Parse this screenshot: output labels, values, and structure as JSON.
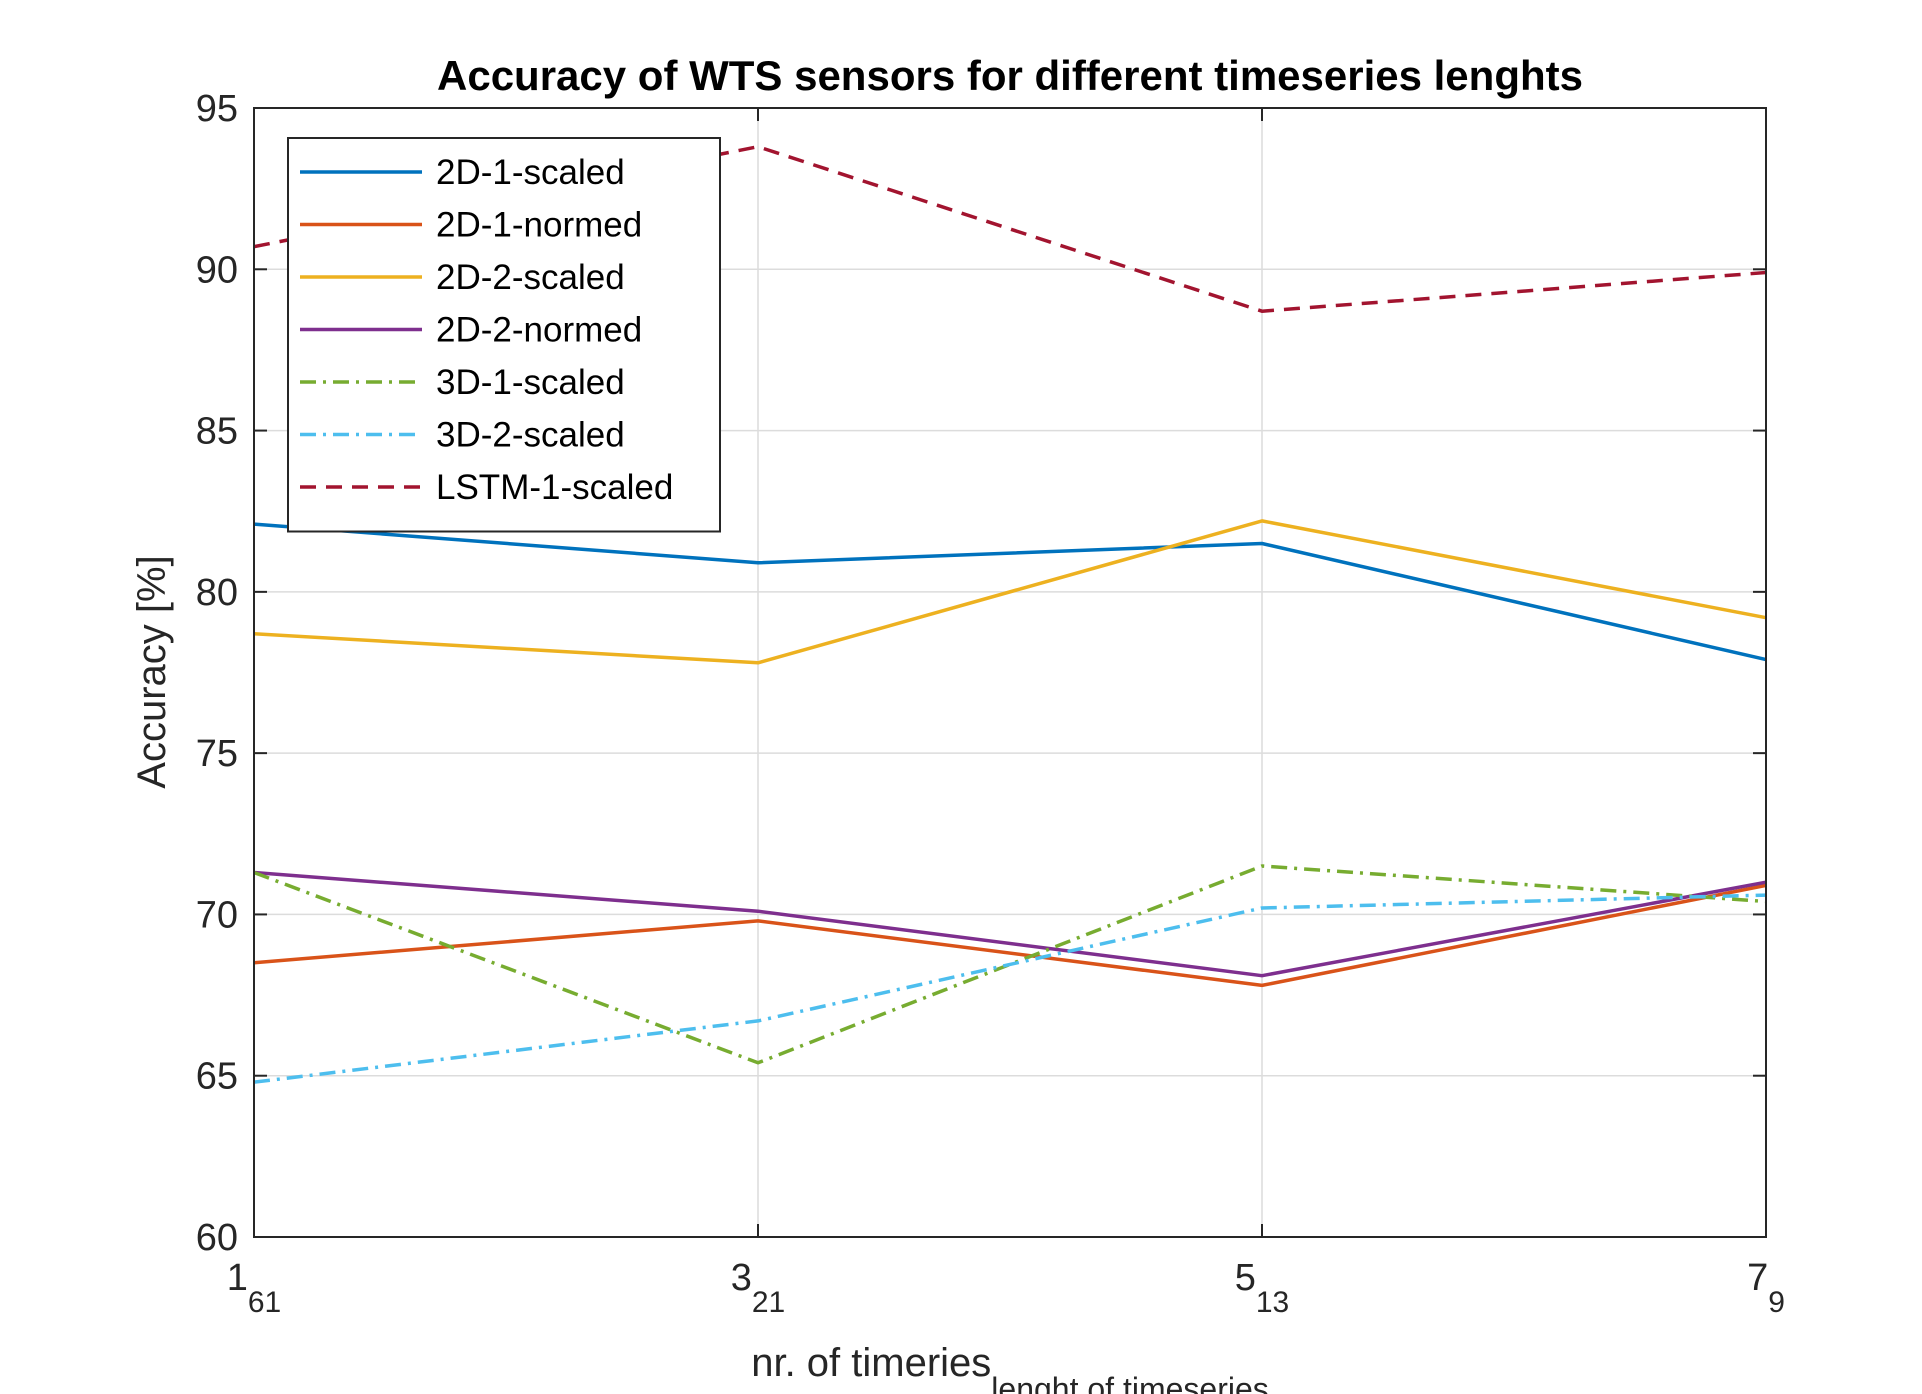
{
  "chart_data": {
    "type": "line",
    "title": "Accuracy of WTS sensors for different timeseries lenghts",
    "xlabel": "nr. of timeries",
    "xlabel_subscript": "lenght of timeseries",
    "ylabel": "Accuracy [%]",
    "x": [
      1,
      3,
      5,
      7
    ],
    "x_tick_labels": [
      {
        "main": "1",
        "sub": "61"
      },
      {
        "main": "3",
        "sub": "21"
      },
      {
        "main": "5",
        "sub": "13"
      },
      {
        "main": "7",
        "sub": "9"
      }
    ],
    "xlim": [
      1,
      7
    ],
    "ylim": [
      60,
      95
    ],
    "y_ticks": [
      60,
      65,
      70,
      75,
      80,
      85,
      90,
      95
    ],
    "grid": true,
    "legend_position": "top-left",
    "series": [
      {
        "name": "2D-1-scaled",
        "color": "#0072BD",
        "style": "solid",
        "values": [
          82.1,
          80.9,
          81.5,
          77.9
        ]
      },
      {
        "name": "2D-1-normed",
        "color": "#D95319",
        "style": "solid",
        "values": [
          68.5,
          69.8,
          67.8,
          70.9
        ]
      },
      {
        "name": "2D-2-scaled",
        "color": "#EDB120",
        "style": "solid",
        "values": [
          78.7,
          77.8,
          82.2,
          79.2
        ]
      },
      {
        "name": "2D-2-normed",
        "color": "#7E2F8E",
        "style": "solid",
        "values": [
          71.3,
          70.1,
          68.1,
          71.0
        ]
      },
      {
        "name": "3D-1-scaled",
        "color": "#77AC30",
        "style": "dashdot",
        "values": [
          71.3,
          65.4,
          71.5,
          70.4
        ]
      },
      {
        "name": "3D-2-scaled",
        "color": "#4DBEEE",
        "style": "dashdot",
        "values": [
          64.8,
          66.7,
          70.2,
          70.6
        ]
      },
      {
        "name": "LSTM-1-scaled",
        "color": "#A2142F",
        "style": "dashed",
        "values": [
          90.7,
          93.8,
          88.7,
          89.9
        ]
      }
    ]
  }
}
